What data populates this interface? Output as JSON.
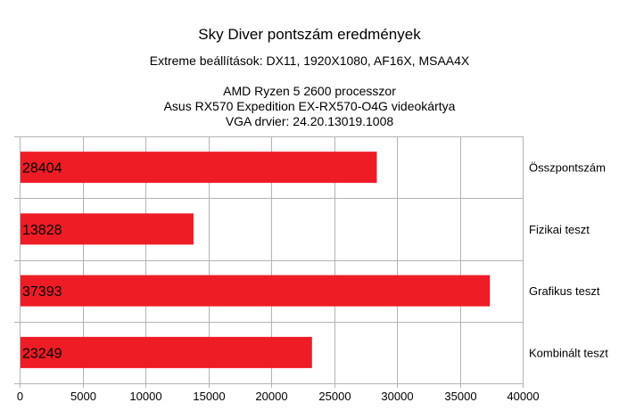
{
  "chart_data": {
    "type": "bar",
    "orientation": "horizontal",
    "title": "Sky Diver pontszám eredmények",
    "subtitle": "Extreme beállítások: DX11, 1920X1080, AF16X, MSAA4X",
    "info_lines": [
      "AMD Ryzen 5 2600 processzor",
      "Asus RX570 Expedition EX-RX570-O4G videokártya",
      "VGA drvier: 24.20.13019.1008"
    ],
    "categories": [
      "Összpontszám",
      "Fizikai teszt",
      "Grafikus teszt",
      "Kombinált teszt"
    ],
    "values": [
      28404,
      13828,
      37393,
      23249
    ],
    "value_labels": [
      "28404",
      "13828",
      "37393",
      "23249"
    ],
    "xlim": [
      0,
      40000
    ],
    "x_ticks": [
      0,
      5000,
      10000,
      15000,
      20000,
      25000,
      30000,
      35000,
      40000
    ],
    "x_tick_labels": [
      "0",
      "5000",
      "10000",
      "15000",
      "20000",
      "25000",
      "30000",
      "35000",
      "40000"
    ],
    "grid": true,
    "category_labels_side": "right",
    "bar_color": "#ee1c25",
    "grid_color": "#b3b3b3"
  }
}
